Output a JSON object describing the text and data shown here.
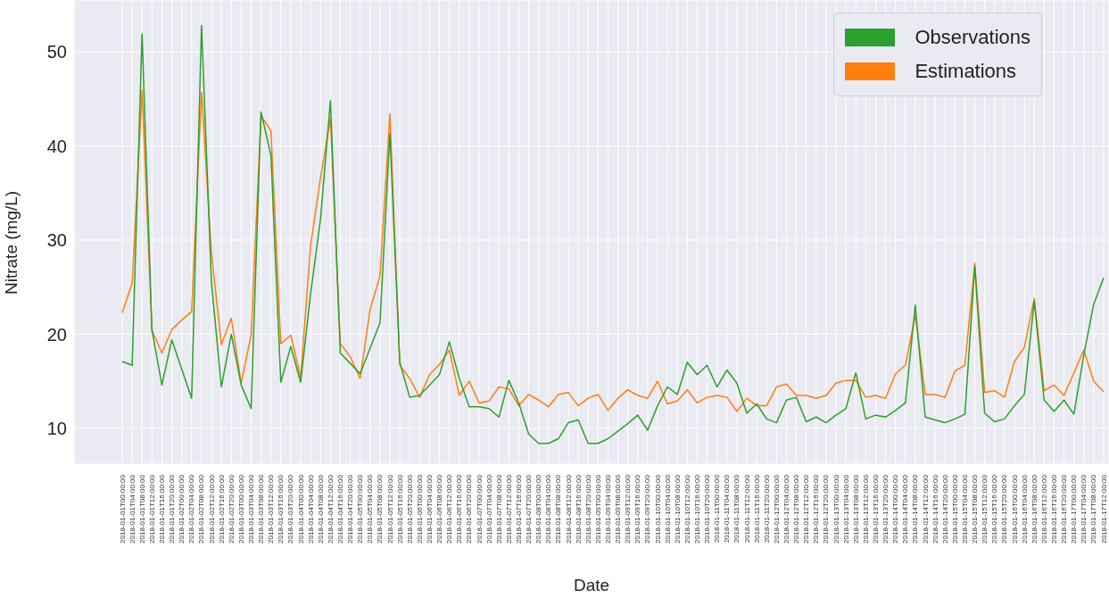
{
  "chart_data": {
    "type": "line",
    "xlabel": "Date",
    "ylabel": "Nitrate (mg/L)",
    "categories": [
      "2018-01-01T00:00:00",
      "2018-01-01T04:00:00",
      "2018-01-01T08:00:00",
      "2018-01-01T12:00:00",
      "2018-01-01T16:00:00",
      "2018-01-01T20:00:00",
      "2018-01-02T00:00:00",
      "2018-01-02T04:00:00",
      "2018-01-02T08:00:00",
      "2018-01-02T12:00:00",
      "2018-01-02T16:00:00",
      "2018-01-02T20:00:00",
      "2018-01-03T00:00:00",
      "2018-01-03T04:00:00",
      "2018-01-03T08:00:00",
      "2018-01-03T12:00:00",
      "2018-01-03T16:00:00",
      "2018-01-03T20:00:00",
      "2018-01-04T00:00:00",
      "2018-01-04T04:00:00",
      "2018-01-04T08:00:00",
      "2018-01-04T12:00:00",
      "2018-01-04T16:00:00",
      "2018-01-04T20:00:00",
      "2018-01-05T00:00:00",
      "2018-01-05T04:00:00",
      "2018-01-05T08:00:00",
      "2018-01-05T12:00:00",
      "2018-01-05T16:00:00",
      "2018-01-05T20:00:00",
      "2018-01-06T00:00:00",
      "2018-01-06T04:00:00",
      "2018-01-06T08:00:00",
      "2018-01-06T12:00:00",
      "2018-01-06T16:00:00",
      "2018-01-06T20:00:00",
      "2018-01-07T00:00:00",
      "2018-01-07T04:00:00",
      "2018-01-07T08:00:00",
      "2018-01-07T12:00:00",
      "2018-01-07T16:00:00",
      "2018-01-07T20:00:00",
      "2018-01-08T00:00:00",
      "2018-01-08T04:00:00",
      "2018-01-08T08:00:00",
      "2018-01-08T12:00:00",
      "2018-01-08T16:00:00",
      "2018-01-08T20:00:00",
      "2018-01-09T00:00:00",
      "2018-01-09T04:00:00",
      "2018-01-09T08:00:00",
      "2018-01-09T12:00:00",
      "2018-01-09T16:00:00",
      "2018-01-09T20:00:00",
      "2018-01-10T00:00:00",
      "2018-01-10T04:00:00",
      "2018-01-10T08:00:00",
      "2018-01-10T12:00:00",
      "2018-01-10T16:00:00",
      "2018-01-10T20:00:00",
      "2018-01-11T00:00:00",
      "2018-01-11T04:00:00",
      "2018-01-11T08:00:00",
      "2018-01-11T12:00:00",
      "2018-01-11T16:00:00",
      "2018-01-11T20:00:00",
      "2018-01-12T00:00:00",
      "2018-01-12T04:00:00",
      "2018-01-12T08:00:00",
      "2018-01-12T12:00:00",
      "2018-01-12T16:00:00",
      "2018-01-12T20:00:00",
      "2018-01-13T00:00:00",
      "2018-01-13T04:00:00",
      "2018-01-13T08:00:00",
      "2018-01-13T12:00:00",
      "2018-01-13T16:00:00",
      "2018-01-13T20:00:00",
      "2018-01-14T00:00:00",
      "2018-01-14T04:00:00",
      "2018-01-14T08:00:00",
      "2018-01-14T12:00:00",
      "2018-01-14T16:00:00",
      "2018-01-14T20:00:00",
      "2018-01-15T00:00:00",
      "2018-01-15T04:00:00",
      "2018-01-15T08:00:00",
      "2018-01-15T12:00:00",
      "2018-01-15T16:00:00",
      "2018-01-15T20:00:00",
      "2018-01-16T00:00:00",
      "2018-01-16T04:00:00",
      "2018-01-16T08:00:00",
      "2018-01-16T12:00:00",
      "2018-01-16T16:00:00",
      "2018-01-16T20:00:00",
      "2018-01-17T00:00:00",
      "2018-01-17T04:00:00",
      "2018-01-17T08:00:00",
      "2018-01-17T12:00:00"
    ],
    "series": [
      {
        "name": "Observations",
        "color": "#2ca02c",
        "values": [
          17.1,
          16.7,
          51.9,
          20.4,
          14.6,
          19.4,
          16.3,
          13.2,
          52.8,
          25.5,
          14.4,
          20.0,
          14.6,
          12.1,
          43.6,
          39.0,
          14.9,
          18.7,
          14.9,
          24.3,
          32.2,
          44.8,
          18.0,
          16.9,
          15.8,
          18.5,
          21.2,
          41.3,
          17.0,
          13.3,
          13.5,
          14.6,
          15.7,
          19.2,
          15.3,
          12.3,
          12.3,
          12.1,
          11.2,
          15.1,
          12.7,
          9.4,
          8.4,
          8.4,
          8.9,
          10.6,
          10.9,
          8.4,
          8.4,
          8.9,
          9.7,
          10.5,
          11.4,
          9.8,
          12.4,
          14.4,
          13.6,
          17.0,
          15.7,
          16.7,
          14.4,
          16.2,
          14.8,
          11.6,
          12.6,
          11.0,
          10.6,
          13.0,
          13.3,
          10.7,
          11.2,
          10.6,
          11.4,
          12.1,
          15.9,
          11.0,
          11.4,
          11.2,
          11.9,
          12.7,
          23.1,
          11.2,
          10.9,
          10.6,
          11.0,
          11.5,
          27.2,
          11.6,
          10.7,
          11.0,
          12.4,
          13.6,
          23.5,
          13.0,
          11.8,
          13.0,
          11.5,
          17.8,
          23.2,
          26.0
        ]
      },
      {
        "name": "Estimations",
        "color": "#ff7f0e",
        "values": [
          22.3,
          25.4,
          45.9,
          20.4,
          18.0,
          20.5,
          21.5,
          22.4,
          45.7,
          28.6,
          18.9,
          21.7,
          14.8,
          19.9,
          43.2,
          41.6,
          19.0,
          19.9,
          15.4,
          29.4,
          36.6,
          42.9,
          19.0,
          17.6,
          15.3,
          22.6,
          26.2,
          43.4,
          16.7,
          15.3,
          13.3,
          15.7,
          16.8,
          18.3,
          13.5,
          15.0,
          12.7,
          12.9,
          14.4,
          14.2,
          12.4,
          13.6,
          13.0,
          12.3,
          13.6,
          13.8,
          12.4,
          13.2,
          13.6,
          11.9,
          13.2,
          14.1,
          13.5,
          13.2,
          15.0,
          12.6,
          12.9,
          14.1,
          12.7,
          13.3,
          13.5,
          13.3,
          11.8,
          13.2,
          12.4,
          12.4,
          14.4,
          14.7,
          13.5,
          13.5,
          13.2,
          13.5,
          14.8,
          15.1,
          15.1,
          13.3,
          13.5,
          13.2,
          15.8,
          16.7,
          22.0,
          13.6,
          13.6,
          13.3,
          16.1,
          16.7,
          27.5,
          13.8,
          14.0,
          13.3,
          17.1,
          18.6,
          23.8,
          14.0,
          14.6,
          13.5,
          15.9,
          18.3,
          15.0,
          13.9
        ]
      }
    ],
    "ylim": [
      6.2,
      55.5
    ],
    "yticks": [
      10,
      20,
      30,
      40,
      50
    ],
    "grid": true,
    "legend": "top right"
  }
}
